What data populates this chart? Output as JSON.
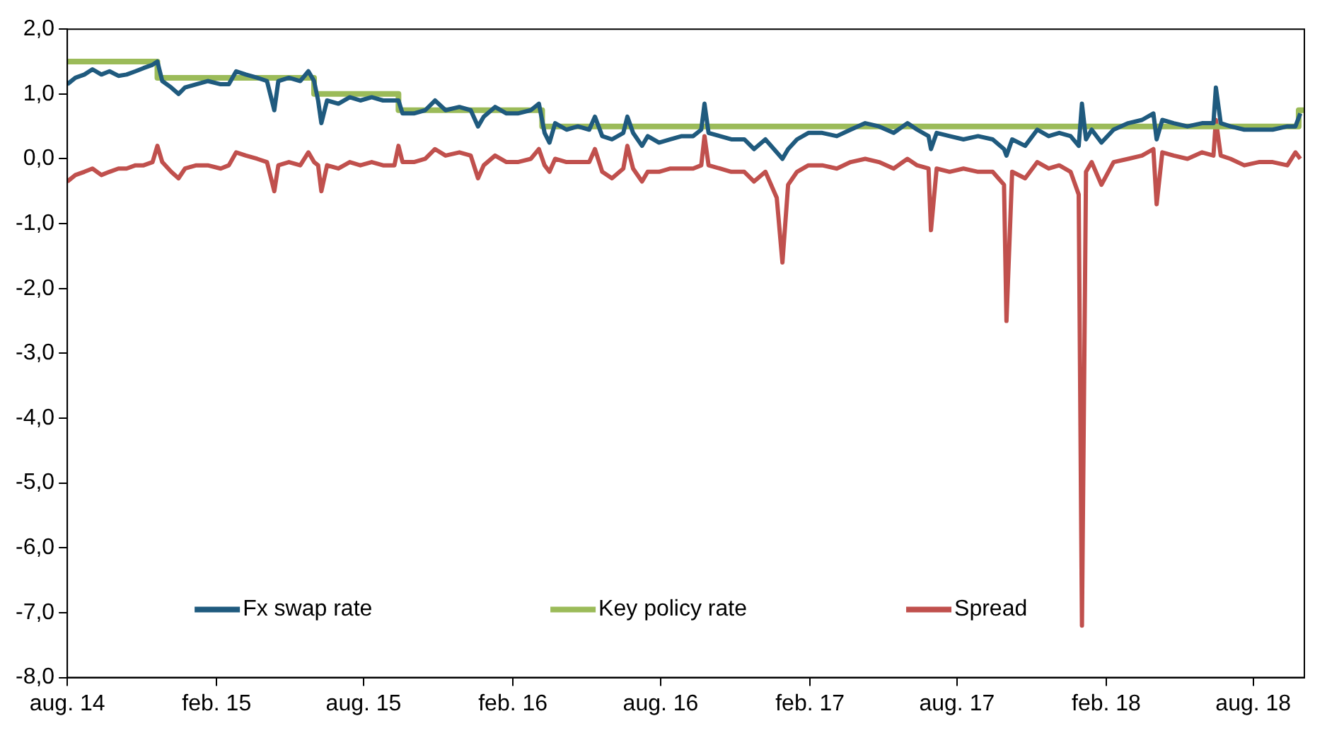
{
  "chart_data": {
    "type": "line",
    "legend": "bottom",
    "grid": false,
    "xlim": [
      "2014-08-01",
      "2018-10-03"
    ],
    "ylim": [
      -8,
      2
    ],
    "xticks": [
      {
        "value": "2014-08",
        "label": "aug. 14"
      },
      {
        "value": "2015-02",
        "label": "feb. 15"
      },
      {
        "value": "2015-08",
        "label": "aug. 15"
      },
      {
        "value": "2016-02",
        "label": "feb. 16"
      },
      {
        "value": "2016-08",
        "label": "aug. 16"
      },
      {
        "value": "2017-02",
        "label": "feb. 17"
      },
      {
        "value": "2017-08",
        "label": "aug. 17"
      },
      {
        "value": "2018-02",
        "label": "feb. 18"
      },
      {
        "value": "2018-08",
        "label": "aug. 18"
      }
    ],
    "yticks": [
      {
        "value": 2,
        "label": "2,0"
      },
      {
        "value": 1,
        "label": "1,0"
      },
      {
        "value": 0,
        "label": "0,0"
      },
      {
        "value": -1,
        "label": "-1,0"
      },
      {
        "value": -2,
        "label": "-2,0"
      },
      {
        "value": -3,
        "label": "-3,0"
      },
      {
        "value": -4,
        "label": "-4,0"
      },
      {
        "value": -5,
        "label": "-5,0"
      },
      {
        "value": -6,
        "label": "-6,0"
      },
      {
        "value": -7,
        "label": "-7,0"
      },
      {
        "value": -8,
        "label": "-8,0"
      }
    ],
    "x": [
      "2014-08-01",
      "2014-08-11",
      "2014-08-22",
      "2014-09-01",
      "2014-09-12",
      "2014-09-22",
      "2014-10-03",
      "2014-10-13",
      "2014-10-24",
      "2014-11-03",
      "2014-11-14",
      "2014-11-20",
      "2014-11-26",
      "2014-12-07",
      "2014-12-16",
      "2014-12-24",
      "2015-01-07",
      "2015-01-21",
      "2015-02-06",
      "2015-02-16",
      "2015-02-25",
      "2015-03-09",
      "2015-03-23",
      "2015-04-04",
      "2015-04-13",
      "2015-04-18",
      "2015-05-01",
      "2015-05-15",
      "2015-05-25",
      "2015-06-01",
      "2015-06-06",
      "2015-06-10",
      "2015-06-17",
      "2015-07-01",
      "2015-07-15",
      "2015-07-28",
      "2015-08-11",
      "2015-08-25",
      "2015-09-08",
      "2015-09-13",
      "2015-09-18",
      "2015-10-02",
      "2015-10-16",
      "2015-10-28",
      "2015-11-10",
      "2015-11-27",
      "2015-12-11",
      "2015-12-20",
      "2015-12-27",
      "2016-01-10",
      "2016-01-24",
      "2016-02-07",
      "2016-02-23",
      "2016-03-04",
      "2016-03-11",
      "2016-03-17",
      "2016-03-24",
      "2016-04-07",
      "2016-04-21",
      "2016-05-05",
      "2016-05-12",
      "2016-05-21",
      "2016-06-02",
      "2016-06-16",
      "2016-06-21",
      "2016-06-28",
      "2016-07-09",
      "2016-07-16",
      "2016-07-30",
      "2016-08-13",
      "2016-08-27",
      "2016-09-10",
      "2016-09-20",
      "2016-09-24",
      "2016-09-29",
      "2016-10-13",
      "2016-10-27",
      "2016-11-12",
      "2016-11-24",
      "2016-12-08",
      "2016-12-22",
      "2016-12-29",
      "2017-01-05",
      "2017-01-16",
      "2017-01-30",
      "2017-02-16",
      "2017-03-06",
      "2017-03-23",
      "2017-04-10",
      "2017-04-27",
      "2017-05-15",
      "2017-06-01",
      "2017-06-13",
      "2017-06-27",
      "2017-06-30",
      "2017-07-07",
      "2017-07-23",
      "2017-08-09",
      "2017-08-27",
      "2017-09-14",
      "2017-09-28",
      "2017-10-01",
      "2017-10-08",
      "2017-10-24",
      "2017-11-08",
      "2017-11-22",
      "2017-12-05",
      "2017-12-19",
      "2017-12-29",
      "2018-01-02",
      "2018-01-07",
      "2018-01-14",
      "2018-01-26",
      "2018-02-10",
      "2018-02-28",
      "2018-03-17",
      "2018-03-31",
      "2018-04-04",
      "2018-04-11",
      "2018-04-25",
      "2018-05-12",
      "2018-05-30",
      "2018-06-13",
      "2018-06-16",
      "2018-06-22",
      "2018-07-04",
      "2018-07-21",
      "2018-08-08",
      "2018-08-25",
      "2018-09-12",
      "2018-09-22",
      "2018-09-28"
    ],
    "series": [
      {
        "name": "Fx swap rate",
        "color": "#1f5a7e",
        "values": [
          1.15,
          1.25,
          1.3,
          1.38,
          1.3,
          1.35,
          1.28,
          1.3,
          1.35,
          1.4,
          1.45,
          1.5,
          1.2,
          1.1,
          1.0,
          1.1,
          1.15,
          1.2,
          1.15,
          1.15,
          1.35,
          1.3,
          1.25,
          1.2,
          0.75,
          1.2,
          1.25,
          1.2,
          1.35,
          1.2,
          0.9,
          0.55,
          0.9,
          0.85,
          0.95,
          0.9,
          0.95,
          0.9,
          0.9,
          0.9,
          0.7,
          0.7,
          0.75,
          0.9,
          0.75,
          0.8,
          0.75,
          0.5,
          0.65,
          0.8,
          0.7,
          0.7,
          0.75,
          0.85,
          0.4,
          0.25,
          0.55,
          0.45,
          0.5,
          0.45,
          0.65,
          0.35,
          0.3,
          0.4,
          0.65,
          0.4,
          0.2,
          0.35,
          0.25,
          0.3,
          0.35,
          0.35,
          0.45,
          0.85,
          0.4,
          0.35,
          0.3,
          0.3,
          0.15,
          0.3,
          0.1,
          0.0,
          0.15,
          0.3,
          0.4,
          0.4,
          0.35,
          0.45,
          0.55,
          0.5,
          0.4,
          0.55,
          0.45,
          0.35,
          0.15,
          0.4,
          0.35,
          0.3,
          0.35,
          0.3,
          0.15,
          0.05,
          0.3,
          0.2,
          0.45,
          0.35,
          0.4,
          0.35,
          0.2,
          0.85,
          0.3,
          0.45,
          0.25,
          0.45,
          0.55,
          0.6,
          0.7,
          0.3,
          0.6,
          0.55,
          0.5,
          0.55,
          0.55,
          1.1,
          0.55,
          0.5,
          0.45,
          0.45,
          0.45,
          0.5,
          0.5,
          0.7
        ]
      },
      {
        "name": "Key policy rate",
        "type": "step",
        "color": "#9bbb59",
        "x": [
          "2014-08-01",
          "2014-11-20",
          "2015-06-01",
          "2015-09-13",
          "2016-03-08",
          "2018-09-26",
          "2018-10-03"
        ],
        "values": [
          1.5,
          1.25,
          1.0,
          0.75,
          0.5,
          0.75,
          0.75
        ]
      },
      {
        "name": "Spread",
        "color": "#c0504d",
        "values": [
          -0.35,
          -0.25,
          -0.2,
          -0.15,
          -0.25,
          -0.2,
          -0.15,
          -0.15,
          -0.1,
          -0.1,
          -0.05,
          0.2,
          -0.05,
          -0.2,
          -0.3,
          -0.15,
          -0.1,
          -0.1,
          -0.15,
          -0.1,
          0.1,
          0.05,
          0.0,
          -0.05,
          -0.5,
          -0.1,
          -0.05,
          -0.1,
          0.1,
          -0.05,
          -0.1,
          -0.5,
          -0.1,
          -0.15,
          -0.05,
          -0.1,
          -0.05,
          -0.1,
          -0.1,
          0.2,
          -0.05,
          -0.05,
          0.0,
          0.15,
          0.05,
          0.1,
          0.05,
          -0.3,
          -0.1,
          0.05,
          -0.05,
          -0.05,
          0.0,
          0.15,
          -0.1,
          -0.2,
          0.0,
          -0.05,
          -0.05,
          -0.05,
          0.15,
          -0.2,
          -0.3,
          -0.15,
          0.2,
          -0.15,
          -0.35,
          -0.2,
          -0.2,
          -0.15,
          -0.15,
          -0.15,
          -0.1,
          0.35,
          -0.1,
          -0.15,
          -0.2,
          -0.2,
          -0.35,
          -0.2,
          -0.6,
          -1.6,
          -0.4,
          -0.2,
          -0.1,
          -0.1,
          -0.15,
          -0.05,
          0.0,
          -0.05,
          -0.15,
          0.0,
          -0.1,
          -0.15,
          -1.1,
          -0.15,
          -0.2,
          -0.15,
          -0.2,
          -0.2,
          -0.4,
          -2.5,
          -0.2,
          -0.3,
          -0.05,
          -0.15,
          -0.1,
          -0.2,
          -0.55,
          -7.2,
          -0.2,
          -0.05,
          -0.4,
          -0.05,
          0.0,
          0.05,
          0.15,
          -0.7,
          0.1,
          0.05,
          0.0,
          0.1,
          0.05,
          0.6,
          0.05,
          0.0,
          -0.1,
          -0.05,
          -0.05,
          -0.1,
          0.1,
          0.0
        ]
      }
    ]
  }
}
